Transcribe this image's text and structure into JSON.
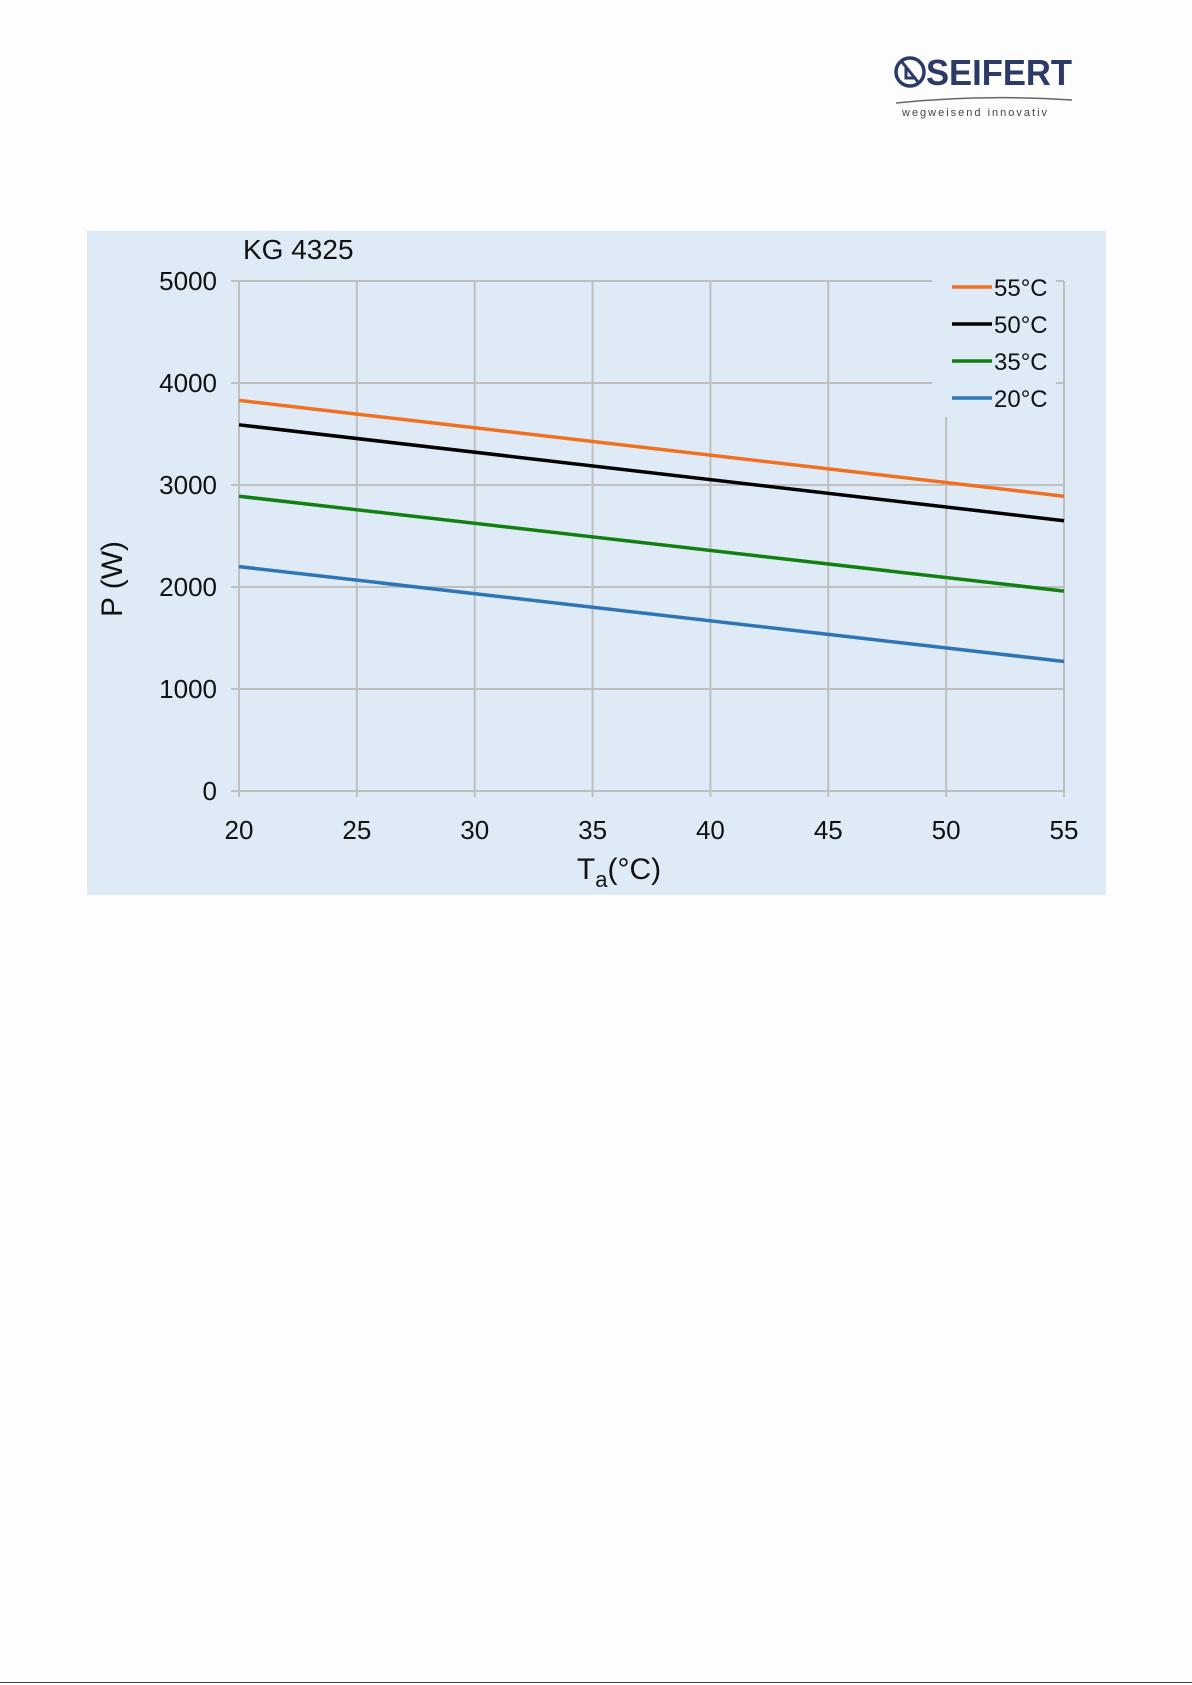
{
  "logo": {
    "brand": "SEIFERT",
    "tagline": "wegweisend innovativ",
    "colors": {
      "brand": "#2b3a67",
      "tagline": "#444444"
    }
  },
  "chart_data": {
    "type": "line",
    "title": "KG 4325",
    "xlabel_main": "T",
    "xlabel_sub": "a",
    "xlabel_rest": "(°C)",
    "ylabel": "P (W)",
    "xlim": [
      20,
      55
    ],
    "ylim": [
      0,
      5000
    ],
    "x_ticks": [
      20,
      25,
      30,
      35,
      40,
      45,
      50,
      55
    ],
    "y_ticks": [
      0,
      1000,
      2000,
      3000,
      4000,
      5000
    ],
    "grid": true,
    "legend_position": "top-right",
    "series": [
      {
        "name": "55°C",
        "color": "#f07020",
        "x": [
          20,
          55
        ],
        "y": [
          3830,
          2890
        ]
      },
      {
        "name": "50°C",
        "color": "#000000",
        "x": [
          20,
          55
        ],
        "y": [
          3590,
          2650
        ]
      },
      {
        "name": "35°C",
        "color": "#118011",
        "x": [
          20,
          55
        ],
        "y": [
          2890,
          1960
        ]
      },
      {
        "name": "20°C",
        "color": "#2e75b6",
        "x": [
          20,
          55
        ],
        "y": [
          2200,
          1270
        ]
      }
    ],
    "colors": {
      "background": "#deeaf6",
      "grid": "#bfbfbf"
    }
  }
}
